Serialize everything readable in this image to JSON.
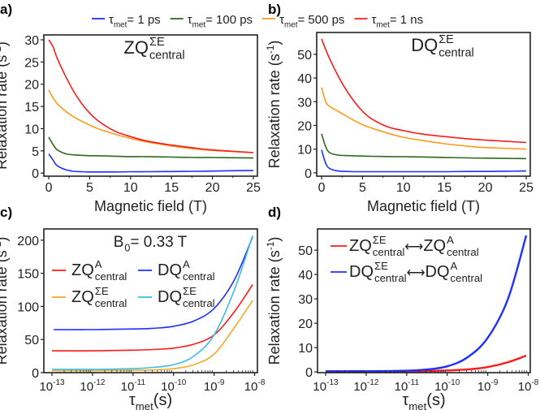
{
  "top_legend": [
    {
      "tau": "τ",
      "sub": "met",
      "text": " = 1 ps",
      "color": "#1f2fff"
    },
    {
      "tau": "τ",
      "sub": "met",
      "text": " = 100 ps",
      "color": "#2b6a1c"
    },
    {
      "tau": "τ",
      "sub": "met",
      "text": " = 500 ps",
      "color": "#ff9a1a"
    },
    {
      "tau": "τ",
      "sub": "met",
      "text": " = 1 ns",
      "color": "#ff1a1a"
    }
  ],
  "chart_data": [
    {
      "panel": "a)",
      "type": "line",
      "xscale": "linear",
      "xlabel": "Magnetic field (T)",
      "ylabel": {
        "text": "Relaxation rate (s",
        "sup": "-1",
        "tail": ")"
      },
      "xlim": [
        -0.6,
        25.5
      ],
      "ylim": [
        -0.7,
        31.1
      ],
      "xticks": [
        0,
        5,
        10,
        15,
        20,
        25
      ],
      "xtick_labels": [
        "0",
        "5",
        "10",
        "15",
        "20",
        "25"
      ],
      "yticks": [
        0,
        5,
        10,
        15,
        20,
        25,
        30
      ],
      "ytick_labels": [
        "0",
        "5",
        "10",
        "15",
        "20",
        "25",
        "30"
      ],
      "annotation": {
        "base": "ZQ",
        "sup": "ΣE",
        "sub": "central"
      },
      "series": [
        {
          "name": "τmet = 1 ps",
          "color": "#1f2fff",
          "x": [
            0,
            0.5,
            1,
            2,
            3,
            4,
            5,
            6,
            8,
            10,
            12,
            15,
            18,
            20,
            25
          ],
          "y": [
            4.3,
            3.0,
            1.7,
            0.8,
            0.4,
            0.3,
            0.25,
            0.25,
            0.25,
            0.3,
            0.3,
            0.35,
            0.4,
            0.45,
            0.6
          ]
        },
        {
          "name": "τmet = 100 ps",
          "color": "#2b6a1c",
          "x": [
            0,
            0.5,
            1,
            2,
            3,
            4,
            5,
            6,
            8,
            10,
            12,
            15,
            18,
            20,
            25
          ],
          "y": [
            8.1,
            6.5,
            5.3,
            4.4,
            4.1,
            4.0,
            3.9,
            3.9,
            3.8,
            3.7,
            3.7,
            3.6,
            3.5,
            3.5,
            3.4
          ]
        },
        {
          "name": "τmet = 500 ps",
          "color": "#ff9a1a",
          "x": [
            0,
            0.5,
            1,
            2,
            3,
            4,
            5,
            6,
            8,
            10,
            12,
            15,
            18,
            20,
            25
          ],
          "y": [
            18.7,
            17.0,
            15.7,
            14.0,
            12.7,
            11.7,
            10.8,
            10.0,
            8.8,
            7.8,
            7.0,
            6.1,
            5.4,
            5.1,
            4.6
          ]
        },
        {
          "name": "τmet = 1 ns",
          "color": "#ff1a1a",
          "x": [
            0,
            0.5,
            1,
            2,
            3,
            4,
            5,
            6,
            8,
            10,
            12,
            15,
            18,
            20,
            25
          ],
          "y": [
            30,
            28.5,
            26,
            22,
            18.5,
            15.7,
            13.5,
            11.8,
            9.5,
            8.2,
            7.2,
            6.3,
            5.6,
            5.2,
            4.6
          ]
        }
      ]
    },
    {
      "panel": "b)",
      "type": "line",
      "xscale": "linear",
      "xlabel": "Magnetic field (T)",
      "ylabel": {
        "text": "Relaxation rate (s",
        "sup": "-1",
        "tail": ")"
      },
      "xlim": [
        -0.6,
        25.5
      ],
      "ylim": [
        -1.4,
        59.2
      ],
      "xticks": [
        0,
        5,
        10,
        15,
        20,
        25
      ],
      "xtick_labels": [
        "0",
        "5",
        "10",
        "15",
        "20",
        "25"
      ],
      "yticks": [
        0,
        10,
        20,
        30,
        40,
        50
      ],
      "ytick_labels": [
        "0",
        "10",
        "20",
        "30",
        "40",
        "50"
      ],
      "annotation": {
        "base": "DQ",
        "sup": "ΣE",
        "sub": "central"
      },
      "series": [
        {
          "name": "τmet = 1 ps",
          "color": "#1f2fff",
          "x": [
            0,
            0.5,
            1,
            2,
            3,
            4,
            5,
            6,
            8,
            10,
            12,
            15,
            18,
            20,
            25
          ],
          "y": [
            9.7,
            4.0,
            1.8,
            0.8,
            0.6,
            0.5,
            0.5,
            0.5,
            0.5,
            0.5,
            0.5,
            0.5,
            0.6,
            0.6,
            0.8
          ]
        },
        {
          "name": "τmet = 100 ps",
          "color": "#2b6a1c",
          "x": [
            0,
            0.5,
            1,
            2,
            3,
            4,
            5,
            6,
            8,
            10,
            12,
            15,
            18,
            20,
            25
          ],
          "y": [
            16.5,
            11,
            8.5,
            7.5,
            7.3,
            7.2,
            7.1,
            7.0,
            6.9,
            6.8,
            6.7,
            6.5,
            6.3,
            6.2,
            6.0
          ]
        },
        {
          "name": "τmet = 500 ps",
          "color": "#ff9a1a",
          "x": [
            0,
            0.5,
            1,
            2,
            3,
            4,
            5,
            6,
            8,
            10,
            12,
            15,
            18,
            20,
            25
          ],
          "y": [
            36,
            30,
            28,
            26,
            24,
            22,
            20.3,
            19,
            16.8,
            15,
            13.8,
            12.3,
            11.2,
            10.7,
            10
          ]
        },
        {
          "name": "τmet = 1 ns",
          "color": "#ff1a1a",
          "x": [
            0,
            0.5,
            1,
            2,
            3,
            4,
            5,
            6,
            8,
            10,
            12,
            15,
            18,
            20,
            25
          ],
          "y": [
            56.5,
            52,
            48,
            41,
            35,
            30,
            26,
            23,
            19.5,
            17.8,
            16.5,
            15.3,
            14.3,
            13.8,
            12.8
          ]
        }
      ]
    },
    {
      "panel": "c)",
      "type": "line",
      "xscale": "log",
      "xlabel": {
        "tau": "τ",
        "sub": "met",
        "text": " (s)"
      },
      "ylabel": {
        "text": "Relaxation rate (s",
        "sup": "-1",
        "tail": ")"
      },
      "xlim": [
        6.3e-14,
        1.17e-08
      ],
      "ylim": [
        0,
        217
      ],
      "xticks": [
        1e-13,
        1e-12,
        1e-11,
        1e-10,
        1e-09,
        1e-08
      ],
      "xtick_labels": [
        "10^-13",
        "10^-12",
        "10^-11",
        "10^-10",
        "10^-9",
        "10^-8"
      ],
      "yticks": [
        0,
        50,
        100,
        150,
        200
      ],
      "ytick_labels": [
        "0",
        "50",
        "100",
        "150",
        "200"
      ],
      "annotation": {
        "base": "B",
        "sub": "0",
        "text": " = 0.33 T"
      },
      "legend": "top-left, two columns",
      "series": [
        {
          "label": {
            "base": "ZQ",
            "sup": "A",
            "sub": "central"
          },
          "color": "#ff1a1a",
          "x": [
            1e-13,
            1e-12,
            1e-11,
            3.16e-11,
            1e-10,
            3.16e-10,
            1e-09,
            3.16e-09,
            8.9e-09
          ],
          "y": [
            33,
            33,
            34,
            35,
            37,
            43,
            57,
            92,
            133
          ]
        },
        {
          "label": {
            "base": "DQ",
            "sup": "A",
            "sub": "central"
          },
          "color": "#1f2fff",
          "x": [
            1.1e-13,
            1e-12,
            1e-11,
            3.16e-11,
            1e-10,
            3.16e-10,
            1e-09,
            3.16e-09,
            8.9e-09
          ],
          "y": [
            65,
            65,
            66,
            67,
            70,
            78,
            97,
            140,
            205
          ]
        },
        {
          "label": {
            "base": "ZQ",
            "sup": "ΣE",
            "sub": "central"
          },
          "color": "#f0aa28",
          "x": [
            1e-13,
            1e-12,
            1e-11,
            3.16e-11,
            1e-10,
            3.16e-10,
            1e-09,
            3.16e-09,
            8.9e-09
          ],
          "y": [
            3,
            3,
            3.5,
            4,
            6,
            12,
            28,
            68,
            109
          ]
        },
        {
          "label": {
            "base": "DQ",
            "sup": "ΣE",
            "sub": "central"
          },
          "color": "#3cbce8",
          "x": [
            1e-13,
            1e-12,
            1e-11,
            3.16e-11,
            1e-10,
            3.16e-10,
            1e-09,
            3.16e-09,
            8.9e-09
          ],
          "y": [
            5,
            5,
            6,
            8,
            12,
            25,
            57,
            125,
            207
          ]
        }
      ]
    },
    {
      "panel": "d)",
      "type": "line",
      "xscale": "log",
      "xlabel": {
        "tau": "τ",
        "sub": "met",
        "text": " (s)"
      },
      "ylabel": {
        "text": "Relaxation rate (s",
        "sup": "-1",
        "tail": ")"
      },
      "xlim": [
        6.3e-14,
        1.12e-08
      ],
      "ylim": [
        -0.3,
        58.7
      ],
      "xticks": [
        1e-13,
        1e-12,
        1e-11,
        1e-10,
        1e-09,
        1e-08
      ],
      "xtick_labels": [
        "10^-13",
        "10^-12",
        "10^-11",
        "10^-10",
        "10^-9",
        "10^-8"
      ],
      "yticks": [
        0,
        10,
        20,
        30,
        40,
        50
      ],
      "ytick_labels": [
        "0",
        "10",
        "20",
        "30",
        "40",
        "50"
      ],
      "legend": "top-left",
      "series": [
        {
          "label": [
            {
              "base": "ZQ",
              "sup": "ΣE",
              "sub": "central"
            },
            "⟷",
            {
              "base": "ZQ",
              "sup": "A",
              "sub": "central"
            }
          ],
          "color": "#ff1a1a",
          "x": [
            1e-13,
            1e-12,
            1e-11,
            3.16e-11,
            1e-10,
            3.16e-10,
            1e-09,
            3.16e-09,
            8.9e-09
          ],
          "y": [
            0.3,
            0.3,
            0.3,
            0.35,
            0.6,
            1.0,
            2.0,
            4.0,
            6.7
          ]
        },
        {
          "label": [
            {
              "base": "DQ",
              "sup": "ΣE",
              "sub": "central"
            },
            "⟷",
            {
              "base": "DQ",
              "sup": "A",
              "sub": "central"
            }
          ],
          "color": "#1f2fff",
          "x": [
            1e-13,
            1e-12,
            1e-11,
            3.16e-11,
            1e-10,
            3.16e-10,
            1e-09,
            3.16e-09,
            8.9e-09
          ],
          "y": [
            0.2,
            0.3,
            0.5,
            1.0,
            2.3,
            6,
            14,
            30,
            56
          ]
        }
      ]
    }
  ]
}
